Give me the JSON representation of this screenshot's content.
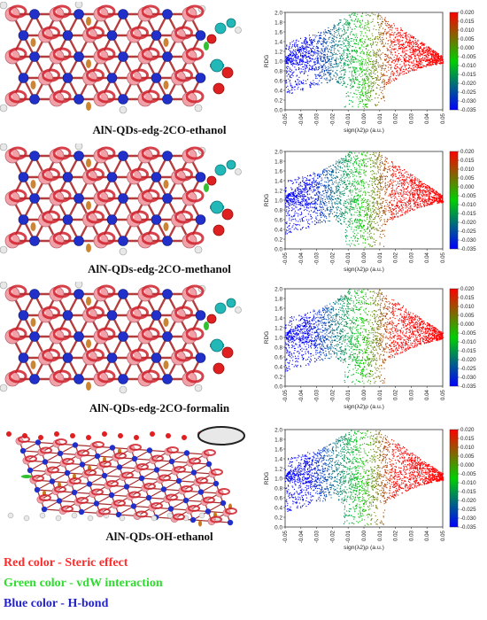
{
  "figure": {
    "panels": [
      {
        "title": "AlN-QDs-edg-2CO-ethanol",
        "variant": "co"
      },
      {
        "title": "AlN-QDs-edg-2CO-methanol",
        "variant": "co"
      },
      {
        "title": "AlN-QDs-edg-2CO-formalin",
        "variant": "co"
      },
      {
        "title": "AlN-QDs-OH-ethanol",
        "variant": "oh"
      }
    ],
    "legend": [
      {
        "text": "Red color - Steric effect",
        "color": "#ff2b2b"
      },
      {
        "text": "Green color - vdW interaction",
        "color": "#2fdc2f"
      },
      {
        "text": "Blue color - H-bond",
        "color": "#2323c8"
      }
    ]
  },
  "chart_data": [
    {
      "type": "scatter",
      "xlabel": "sign(λ2)ρ (a.u.)",
      "ylabel": "RDG",
      "xlim": [
        -0.05,
        0.05
      ],
      "ylim": [
        0.0,
        2.0
      ],
      "xticks": [
        "-0.05",
        "-0.04",
        "-0.03",
        "-0.02",
        "-0.01",
        "0.00",
        "0.01",
        "0.02",
        "0.03",
        "0.04",
        "0.05"
      ],
      "yticks": [
        "0.0",
        "0.2",
        "0.4",
        "0.6",
        "0.8",
        "1.0",
        "1.2",
        "1.4",
        "1.6",
        "1.8",
        "2.0"
      ],
      "colorbar": {
        "min": -0.035,
        "max": 0.02,
        "ticks": [
          "0.020",
          "0.015",
          "0.010",
          "0.005",
          "0.000",
          "-0.005",
          "-0.010",
          "-0.015",
          "-0.020",
          "-0.025",
          "-0.030",
          "-0.035"
        ],
        "colors": [
          "#ff0000",
          "#00d000",
          "#0000ff"
        ]
      }
    },
    {
      "type": "scatter",
      "xlabel": "sign(λ2)ρ (a.u.)",
      "ylabel": "RDG",
      "xlim": [
        -0.05,
        0.05
      ],
      "ylim": [
        0.0,
        2.0
      ],
      "xticks": [
        "-0.05",
        "-0.04",
        "-0.03",
        "-0.02",
        "-0.01",
        "0.00",
        "0.01",
        "0.02",
        "0.03",
        "0.04",
        "0.05"
      ],
      "yticks": [
        "0.0",
        "0.2",
        "0.4",
        "0.6",
        "0.8",
        "1.0",
        "1.2",
        "1.4",
        "1.6",
        "1.8",
        "2.0"
      ],
      "colorbar": {
        "min": -0.035,
        "max": 0.02,
        "ticks": [
          "0.020",
          "0.015",
          "0.010",
          "0.005",
          "0.000",
          "-0.005",
          "-0.010",
          "-0.015",
          "-0.020",
          "-0.025",
          "-0.030",
          "-0.035"
        ],
        "colors": [
          "#ff0000",
          "#00d000",
          "#0000ff"
        ]
      }
    },
    {
      "type": "scatter",
      "xlabel": "sign(λ2)ρ (a.u.)",
      "ylabel": "RDG",
      "xlim": [
        -0.05,
        0.05
      ],
      "ylim": [
        0.0,
        2.0
      ],
      "xticks": [
        "-0.05",
        "-0.04",
        "-0.03",
        "-0.02",
        "-0.01",
        "0.00",
        "0.01",
        "0.02",
        "0.03",
        "0.04",
        "0.05"
      ],
      "yticks": [
        "0.0",
        "0.2",
        "0.4",
        "0.6",
        "0.8",
        "1.0",
        "1.2",
        "1.4",
        "1.6",
        "1.8",
        "2.0"
      ],
      "colorbar": {
        "min": -0.035,
        "max": 0.02,
        "ticks": [
          "0.020",
          "0.015",
          "0.010",
          "0.005",
          "0.000",
          "-0.005",
          "-0.010",
          "-0.015",
          "-0.020",
          "-0.025",
          "-0.030",
          "-0.035"
        ],
        "colors": [
          "#ff0000",
          "#00d000",
          "#0000ff"
        ]
      }
    },
    {
      "type": "scatter",
      "xlabel": "sign(λ2)ρ (a.u.)",
      "ylabel": "RDG",
      "xlim": [
        -0.05,
        0.05
      ],
      "ylim": [
        0.0,
        2.0
      ],
      "xticks": [
        "-0.05",
        "-0.04",
        "-0.03",
        "-0.02",
        "-0.01",
        "0.00",
        "0.01",
        "0.02",
        "0.03",
        "0.04",
        "0.05"
      ],
      "yticks": [
        "0.0",
        "0.2",
        "0.4",
        "0.6",
        "0.8",
        "1.0",
        "1.2",
        "1.4",
        "1.6",
        "1.8",
        "2.0"
      ],
      "colorbar": {
        "min": -0.035,
        "max": 0.02,
        "ticks": [
          "0.020",
          "0.015",
          "0.010",
          "0.005",
          "0.000",
          "-0.005",
          "-0.010",
          "-0.015",
          "-0.020",
          "-0.025",
          "-0.030",
          "-0.035"
        ],
        "colors": [
          "#ff0000",
          "#00d000",
          "#0000ff"
        ]
      }
    }
  ]
}
